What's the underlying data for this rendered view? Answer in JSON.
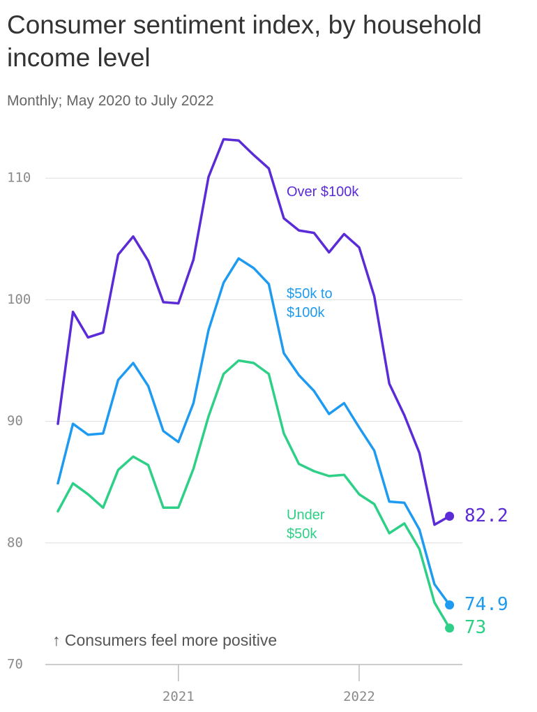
{
  "header": {
    "title": "Consumer sentiment index, by household income level",
    "subtitle": "Monthly; May 2020 to July 2022"
  },
  "colors": {
    "over_100k": "#5a2bd6",
    "mid": "#1e9bf0",
    "under_50k": "#2ecf86",
    "grid": "#dddddd",
    "axis": "#bbbbbb",
    "text": "#333333"
  },
  "chart_data": {
    "type": "line",
    "title": "Consumer sentiment index, by household income level",
    "subtitle": "Monthly; May 2020 to July 2022",
    "xlabel": "",
    "ylabel": "",
    "x": [
      "2020-05",
      "2020-06",
      "2020-07",
      "2020-08",
      "2020-09",
      "2020-10",
      "2020-11",
      "2020-12",
      "2021-01",
      "2021-02",
      "2021-03",
      "2021-04",
      "2021-05",
      "2021-06",
      "2021-07",
      "2021-08",
      "2021-09",
      "2021-10",
      "2021-11",
      "2021-12",
      "2022-01",
      "2022-02",
      "2022-03",
      "2022-04",
      "2022-05",
      "2022-06",
      "2022-07"
    ],
    "x_ticks": [
      {
        "value": "2021-01",
        "label": "2021"
      },
      {
        "value": "2022-01",
        "label": "2022"
      }
    ],
    "y_ticks": [
      "70",
      "80",
      "90",
      "100",
      "110"
    ],
    "ylim": [
      70,
      113
    ],
    "grid": "horizontal",
    "annotation": "↑ Consumers feel more positive",
    "series": [
      {
        "name": "Over $100k",
        "label_lines": [
          "Over $100k"
        ],
        "color": "#5a2bd6",
        "values": [
          89.8,
          99.0,
          96.9,
          97.3,
          103.7,
          105.2,
          103.2,
          99.8,
          99.7,
          103.3,
          110.1,
          113.2,
          113.1,
          111.9,
          110.8,
          106.7,
          105.7,
          105.5,
          103.9,
          105.4,
          104.3,
          100.3,
          93.1,
          90.5,
          87.4,
          81.5,
          82.2
        ],
        "end_label": "82.2"
      },
      {
        "name": "$50k to $100k",
        "label_lines": [
          "$50k to",
          "$100k"
        ],
        "color": "#1e9bf0",
        "values": [
          84.9,
          89.8,
          88.9,
          89.0,
          93.4,
          94.8,
          92.9,
          89.2,
          88.3,
          91.5,
          97.5,
          101.4,
          103.4,
          102.6,
          101.3,
          95.6,
          93.8,
          92.5,
          90.6,
          91.5,
          89.5,
          87.6,
          83.4,
          83.3,
          81.1,
          76.6,
          74.9
        ],
        "end_label": "74.9"
      },
      {
        "name": "Under $50k",
        "label_lines": [
          "Under",
          "$50k"
        ],
        "color": "#2ecf86",
        "values": [
          82.6,
          84.9,
          84.0,
          82.9,
          86.0,
          87.1,
          86.4,
          82.9,
          82.9,
          86.1,
          90.4,
          93.9,
          95.0,
          94.8,
          93.9,
          89.0,
          86.5,
          85.9,
          85.5,
          85.6,
          84.0,
          83.2,
          80.8,
          81.6,
          79.5,
          75.1,
          73.0
        ],
        "end_label": "73"
      }
    ]
  }
}
